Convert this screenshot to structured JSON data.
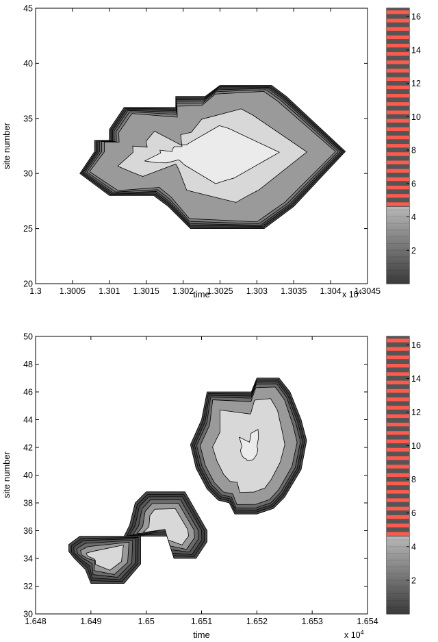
{
  "chart_data": [
    {
      "type": "contour",
      "title": "",
      "xlabel": "time",
      "ylabel": "site number",
      "x_multiplier_label": "x 10",
      "x_multiplier_exponent": "4",
      "xlim": [
        13000,
        13045
      ],
      "ylim": [
        20,
        45
      ],
      "x_tick_values": [
        13000,
        13005,
        13010,
        13015,
        13020,
        13025,
        13030,
        13035,
        13040,
        13045
      ],
      "x_tick_labels": [
        "1.3",
        "1.3005",
        "1.301",
        "1.3015",
        "1.302",
        "1.3025",
        "1.303",
        "1.3035",
        "1.304",
        "1.3045"
      ],
      "y_tick_values": [
        20,
        25,
        30,
        35,
        40,
        45
      ],
      "y_tick_labels": [
        "20",
        "25",
        "30",
        "35",
        "40",
        "45"
      ],
      "colorbar": {
        "range": [
          0,
          16.5
        ],
        "tick_values": [
          2,
          4,
          6,
          8,
          10,
          12,
          14,
          16
        ],
        "tick_labels": [
          "2",
          "4",
          "6",
          "8",
          "10",
          "12",
          "14",
          "16"
        ],
        "gray_segment_top": 4.6,
        "stripe_colors": [
          "#555555",
          "#ff5a4e"
        ]
      },
      "regions": [
        {
          "polygon": [
            [
              13006,
              30
            ],
            [
              13008,
              32
            ],
            [
              13008,
              33
            ],
            [
              13010,
              33
            ],
            [
              13010,
              34
            ],
            [
              13012,
              36
            ],
            [
              13019,
              36
            ],
            [
              13019,
              37
            ],
            [
              13023,
              37
            ],
            [
              13025,
              38
            ],
            [
              13032,
              38
            ],
            [
              13034,
              37
            ],
            [
              13042,
              32
            ],
            [
              13035,
              27
            ],
            [
              13033,
              26
            ],
            [
              13031,
              25
            ],
            [
              13021,
              25
            ],
            [
              13018,
              27
            ],
            [
              13016,
              28
            ],
            [
              13010,
              28
            ],
            [
              13008,
              29
            ]
          ],
          "levels": [
            {
              "level": 1,
              "offset": 0.0,
              "color": "#4a4a4a"
            },
            {
              "level": 2,
              "offset": 0.15,
              "color": "#3f3f3f"
            },
            {
              "level": 3,
              "offset": 0.3,
              "color": "#555555"
            },
            {
              "level": 4,
              "offset": 0.45,
              "color": "#6b6b6b"
            },
            {
              "level": 5,
              "offset": 0.65,
              "color": "#808080"
            },
            {
              "level": 6,
              "offset": 0.9,
              "color": "#9a9a9a"
            },
            {
              "level": 8,
              "offset": 3.5,
              "color": "#d8d8d8"
            },
            {
              "level": 9,
              "offset": 6.0,
              "color": "#ebebeb"
            }
          ]
        }
      ]
    },
    {
      "type": "contour",
      "title": "",
      "xlabel": "time",
      "ylabel": "site number",
      "x_multiplier_label": "x 10",
      "x_multiplier_exponent": "4",
      "xlim": [
        16480,
        16540
      ],
      "ylim": [
        30,
        50
      ],
      "x_tick_values": [
        16480,
        16490,
        16500,
        16510,
        16520,
        16530,
        16540
      ],
      "x_tick_labels": [
        "1.648",
        "1.649",
        "1.65",
        "1.651",
        "1.652",
        "1.653",
        "1.654"
      ],
      "y_tick_values": [
        30,
        32,
        34,
        36,
        38,
        40,
        42,
        44,
        46,
        48,
        50
      ],
      "y_tick_labels": [
        "30",
        "32",
        "34",
        "36",
        "38",
        "40",
        "42",
        "44",
        "46",
        "48",
        "50"
      ],
      "colorbar": {
        "range": [
          0,
          16.5
        ],
        "tick_values": [
          2,
          4,
          6,
          8,
          10,
          12,
          14,
          16
        ],
        "tick_labels": [
          "2",
          "4",
          "6",
          "8",
          "10",
          "12",
          "14",
          "16"
        ],
        "gray_segment_top": 4.6,
        "stripe_colors": [
          "#555555",
          "#ff5a4e"
        ]
      },
      "regions": [
        {
          "polygon": [
            [
              16486,
              35
            ],
            [
              16488,
              35.6
            ],
            [
              16499,
              35.6
            ],
            [
              16499,
              33.6
            ],
            [
              16496,
              32.2
            ],
            [
              16490,
              32.2
            ],
            [
              16489,
              33.2
            ],
            [
              16487,
              34
            ],
            [
              16486,
              34.5
            ]
          ],
          "levels": [
            {
              "level": 1,
              "offset": 0.0,
              "color": "#4a4a4a"
            },
            {
              "level": 2,
              "offset": 0.2,
              "color": "#3f3f3f"
            },
            {
              "level": 3,
              "offset": 0.4,
              "color": "#555555"
            },
            {
              "level": 4,
              "offset": 0.65,
              "color": "#6b6b6b"
            },
            {
              "level": 6,
              "offset": 0.95,
              "color": "#9a9a9a"
            },
            {
              "level": 8,
              "offset": 1.4,
              "color": "#d8d8d8"
            }
          ]
        },
        {
          "polygon": [
            [
              16496,
              35.6
            ],
            [
              16497,
              36.4
            ],
            [
              16498,
              38
            ],
            [
              16500,
              38.8
            ],
            [
              16507,
              38.8
            ],
            [
              16511,
              36
            ],
            [
              16511,
              35.2
            ],
            [
              16509,
              34
            ],
            [
              16505,
              34
            ],
            [
              16504,
              35.6
            ],
            [
              16498,
              35.6
            ]
          ],
          "levels": [
            {
              "level": 1,
              "offset": 0.0,
              "color": "#4a4a4a"
            },
            {
              "level": 2,
              "offset": 0.2,
              "color": "#3f3f3f"
            },
            {
              "level": 3,
              "offset": 0.4,
              "color": "#555555"
            },
            {
              "level": 4,
              "offset": 0.65,
              "color": "#6b6b6b"
            },
            {
              "level": 6,
              "offset": 0.95,
              "color": "#9a9a9a"
            },
            {
              "level": 8,
              "offset": 1.4,
              "color": "#d8d8d8"
            }
          ]
        },
        {
          "polygon": [
            [
              16508,
              42.2
            ],
            [
              16510,
              44
            ],
            [
              16511,
              46
            ],
            [
              16519,
              46
            ],
            [
              16520,
              47
            ],
            [
              16524,
              47
            ],
            [
              16526,
              46
            ],
            [
              16528,
              44
            ],
            [
              16529,
              42.5
            ],
            [
              16528,
              40.4
            ],
            [
              16525,
              38.4
            ],
            [
              16523,
              37.6
            ],
            [
              16520,
              37.2
            ],
            [
              16516,
              37.2
            ],
            [
              16515,
              38
            ],
            [
              16513,
              38.2
            ],
            [
              16511,
              39
            ],
            [
              16509,
              40.5
            ]
          ],
          "levels": [
            {
              "level": 1,
              "offset": 0.0,
              "color": "#4a4a4a"
            },
            {
              "level": 2,
              "offset": 0.15,
              "color": "#3f3f3f"
            },
            {
              "level": 3,
              "offset": 0.3,
              "color": "#555555"
            },
            {
              "level": 4,
              "offset": 0.45,
              "color": "#6b6b6b"
            },
            {
              "level": 6,
              "offset": 0.7,
              "color": "#9a9a9a"
            },
            {
              "level": 8,
              "offset": 1.6,
              "color": "#d8d8d8"
            },
            {
              "level": 9,
              "offset": 4.0,
              "color": "#ebebeb"
            }
          ]
        }
      ]
    }
  ]
}
